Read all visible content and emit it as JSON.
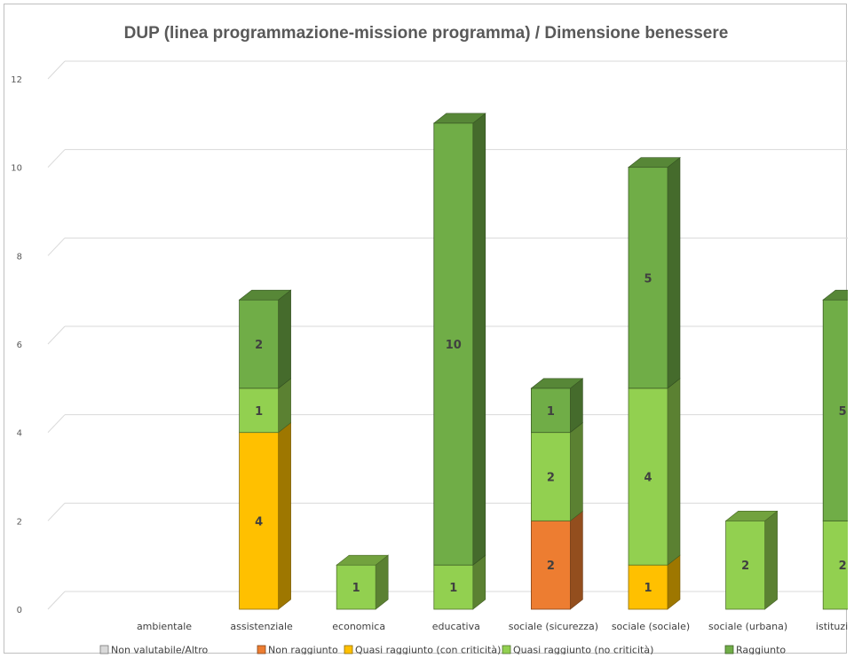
{
  "chart_data": {
    "type": "bar",
    "stacked": true,
    "style": "3d-column",
    "title": "DUP (linea programmazione-missione programma) / Dimensione benessere",
    "categories": [
      "ambientale",
      "assistenziale",
      "economica",
      "educativa",
      "sociale (sicurezza)",
      "sociale (sociale)",
      "sociale (urbana)",
      "istituzionale"
    ],
    "yticks": [
      "0",
      "2",
      "4",
      "6",
      "8",
      "10",
      "12"
    ],
    "ylim": [
      0,
      12
    ],
    "grid": true,
    "legend_position": "bottom",
    "series": [
      {
        "name": "Non valutabile/Altro",
        "color": "#d9d9d9",
        "values": [
          0,
          0,
          0,
          0,
          0,
          0,
          0,
          0
        ]
      },
      {
        "name": "Non raggiunto",
        "color": "#ed7d31",
        "values": [
          0,
          0,
          0,
          0,
          2,
          0,
          0,
          0
        ]
      },
      {
        "name": "Quasi raggiunto (con criticità)",
        "color": "#ffc000",
        "values": [
          0,
          4,
          0,
          0,
          0,
          1,
          0,
          0
        ]
      },
      {
        "name": "Quasi raggiunto (no criticità)",
        "color": "#92d050",
        "values": [
          0,
          1,
          1,
          1,
          2,
          4,
          2,
          2
        ]
      },
      {
        "name": "Raggiunto",
        "color": "#70ad47",
        "values": [
          0,
          2,
          0,
          10,
          1,
          5,
          0,
          5
        ]
      }
    ]
  }
}
